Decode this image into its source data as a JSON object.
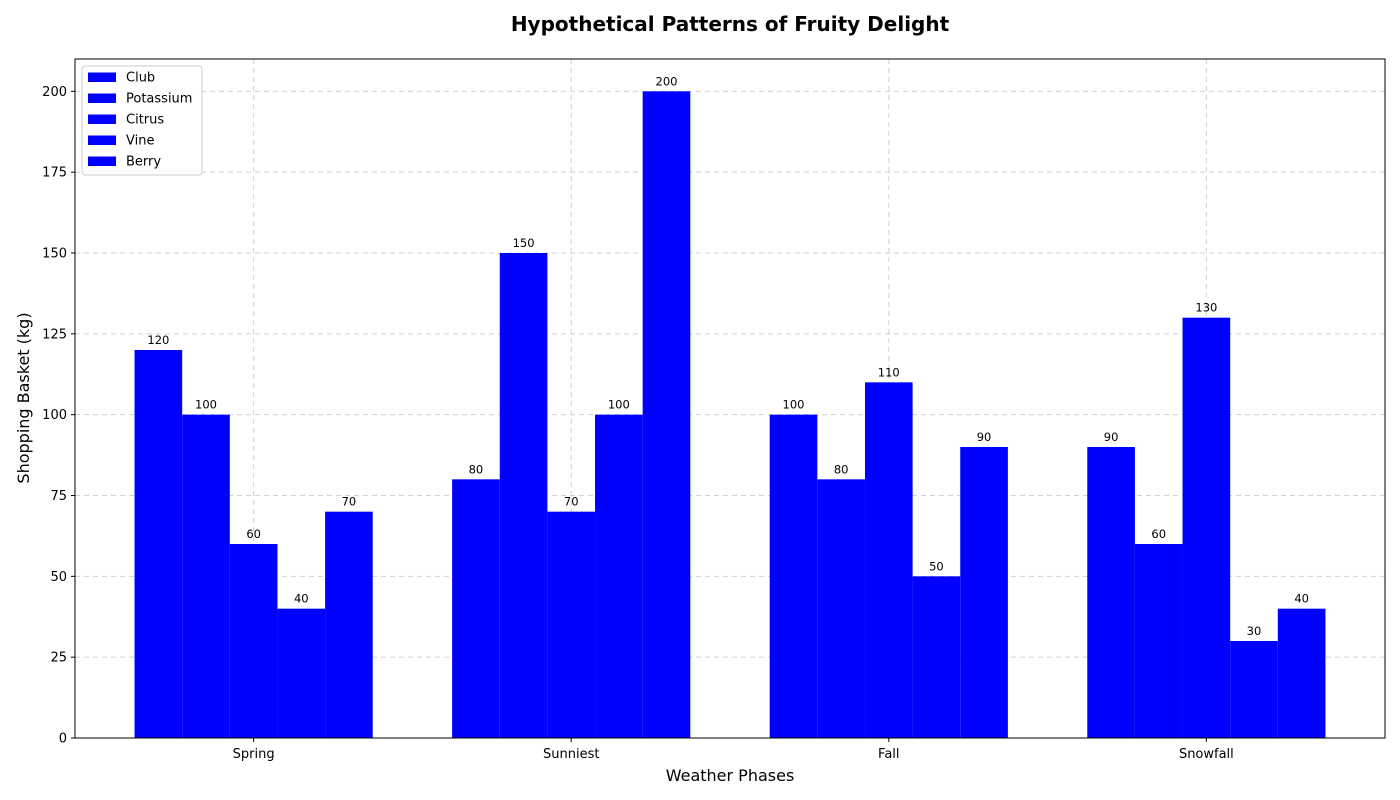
{
  "chart_data": {
    "type": "bar",
    "title": "Hypothetical Patterns of Fruity Delight",
    "xlabel": "Weather Phases",
    "ylabel": "Shopping Basket (kg)",
    "categories": [
      "Spring",
      "Sunniest",
      "Fall",
      "Snowfall"
    ],
    "series": [
      {
        "name": "Club",
        "values": [
          120,
          80,
          100,
          90
        ]
      },
      {
        "name": "Potassium",
        "values": [
          100,
          150,
          80,
          60
        ]
      },
      {
        "name": "Citrus",
        "values": [
          60,
          70,
          110,
          130
        ]
      },
      {
        "name": "Vine",
        "values": [
          40,
          100,
          50,
          30
        ]
      },
      {
        "name": "Berry",
        "values": [
          70,
          200,
          90,
          40
        ]
      }
    ],
    "ylim": [
      0,
      210
    ],
    "yticks": [
      0,
      25,
      50,
      75,
      100,
      125,
      150,
      175,
      200
    ],
    "bar_color": "#0000ff",
    "grid": true,
    "legend_position": "top-left",
    "data_labels": true
  }
}
